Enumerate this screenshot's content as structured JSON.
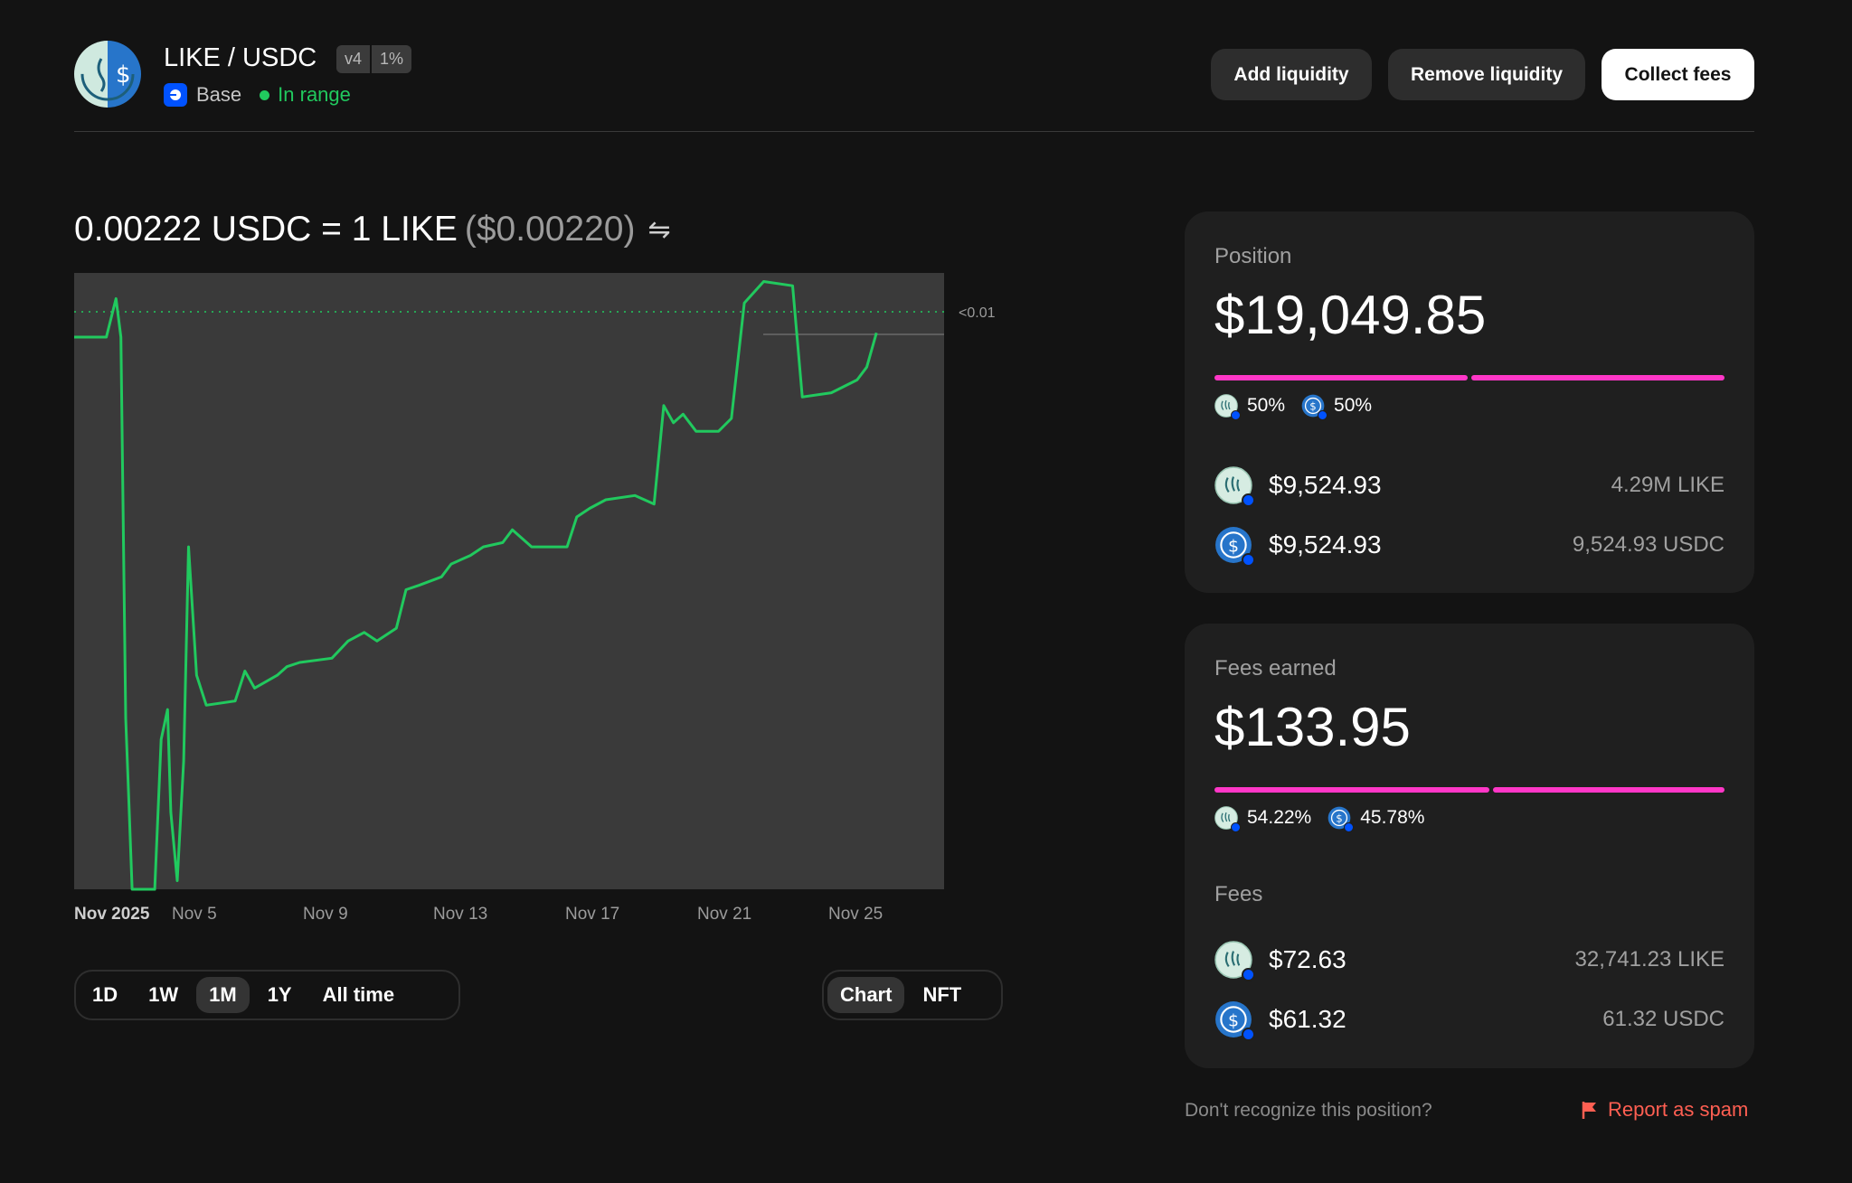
{
  "header": {
    "pair": "LIKE / USDC",
    "version": "v4",
    "fee_tier": "1%",
    "network": "Base",
    "status": "In range",
    "buttons": {
      "add": "Add liquidity",
      "remove": "Remove liquidity",
      "collect": "Collect fees"
    }
  },
  "price": {
    "rate": "0.00222 USDC = 1 LIKE",
    "usd": "($0.00220)",
    "swap_icon": "swap-arrows-icon"
  },
  "chart_data": {
    "type": "line",
    "x_ticks": [
      "Nov 2025",
      "Nov 5",
      "Nov 9",
      "Nov 13",
      "Nov 17",
      "Nov 21",
      "Nov 25"
    ],
    "y_marker_label": "<0.01",
    "grid": false,
    "series": [
      {
        "points": [
          [
            0,
            0.00239
          ],
          [
            0.5,
            0.00239
          ],
          [
            1,
            0.00239
          ],
          [
            1.3,
            0.00248
          ],
          [
            1.45,
            0.00239
          ],
          [
            1.6,
            0.0015
          ],
          [
            1.7,
            0.0013
          ],
          [
            1.8,
            0.0011
          ],
          [
            2.5,
            0.0011
          ],
          [
            2.7,
            0.00145
          ],
          [
            2.9,
            0.00152
          ],
          [
            3.0,
            0.00128
          ],
          [
            3.2,
            0.00112
          ],
          [
            3.4,
            0.0014
          ],
          [
            3.55,
            0.0019
          ],
          [
            3.8,
            0.0016
          ],
          [
            4.1,
            0.00153
          ],
          [
            5,
            0.00154
          ],
          [
            5.3,
            0.00161
          ],
          [
            5.6,
            0.00157
          ],
          [
            6.3,
            0.0016
          ],
          [
            6.6,
            0.00162
          ],
          [
            7,
            0.00163
          ],
          [
            8,
            0.00164
          ],
          [
            8.5,
            0.00168
          ],
          [
            9,
            0.0017
          ],
          [
            9.4,
            0.00168
          ],
          [
            10,
            0.00171
          ],
          [
            10.3,
            0.0018
          ],
          [
            10.7,
            0.00181
          ],
          [
            11.4,
            0.00183
          ],
          [
            11.7,
            0.00186
          ],
          [
            12.3,
            0.00188
          ],
          [
            12.7,
            0.0019
          ],
          [
            13.3,
            0.00191
          ],
          [
            13.6,
            0.00194
          ],
          [
            14.2,
            0.0019
          ],
          [
            15.3,
            0.0019
          ],
          [
            15.6,
            0.00197
          ],
          [
            16.0,
            0.00199
          ],
          [
            16.5,
            0.00201
          ],
          [
            17.4,
            0.00202
          ],
          [
            18.0,
            0.002
          ],
          [
            18.3,
            0.00223
          ],
          [
            18.6,
            0.00219
          ],
          [
            18.9,
            0.00221
          ],
          [
            19.3,
            0.00217
          ],
          [
            20.0,
            0.00217
          ],
          [
            20.4,
            0.0022
          ],
          [
            20.8,
            0.00247
          ],
          [
            21.4,
            0.00252
          ],
          [
            22.3,
            0.00251
          ],
          [
            22.6,
            0.00225
          ],
          [
            23.5,
            0.00226
          ],
          [
            24.3,
            0.00229
          ],
          [
            24.6,
            0.00232
          ],
          [
            24.9,
            0.0024
          ]
        ]
      }
    ]
  },
  "ranges": {
    "options": [
      "1D",
      "1W",
      "1M",
      "1Y",
      "All time"
    ],
    "selected": "1M"
  },
  "view_toggle": {
    "options": [
      "Chart",
      "NFT"
    ],
    "selected": "Chart"
  },
  "position": {
    "label": "Position",
    "value": "$19,049.85",
    "split_fraction": [
      0.5,
      0.5
    ],
    "pct_a": "50%",
    "pct_b": "50%",
    "tokens": [
      {
        "usd": "$9,524.93",
        "amount": "4.29M LIKE",
        "icon": "like-token-icon"
      },
      {
        "usd": "$9,524.93",
        "amount": "9,524.93 USDC",
        "icon": "usdc-token-icon"
      }
    ]
  },
  "fees": {
    "label": "Fees earned",
    "value": "$133.95",
    "split_fraction": [
      0.5422,
      0.4578
    ],
    "pct_a": "54.22%",
    "pct_b": "45.78%",
    "section_label": "Fees",
    "tokens": [
      {
        "usd": "$72.63",
        "amount": "32,741.23 LIKE",
        "icon": "like-token-icon"
      },
      {
        "usd": "$61.32",
        "amount": "61.32 USDC",
        "icon": "usdc-token-icon"
      }
    ]
  },
  "footer": {
    "question": "Don't recognize this position?",
    "report": "Report as spam"
  },
  "colors": {
    "accent_green": "#21c95e",
    "bar_pink": "#ff37c7",
    "spam_red": "#ff5f52",
    "network_blue": "#0052ff"
  }
}
